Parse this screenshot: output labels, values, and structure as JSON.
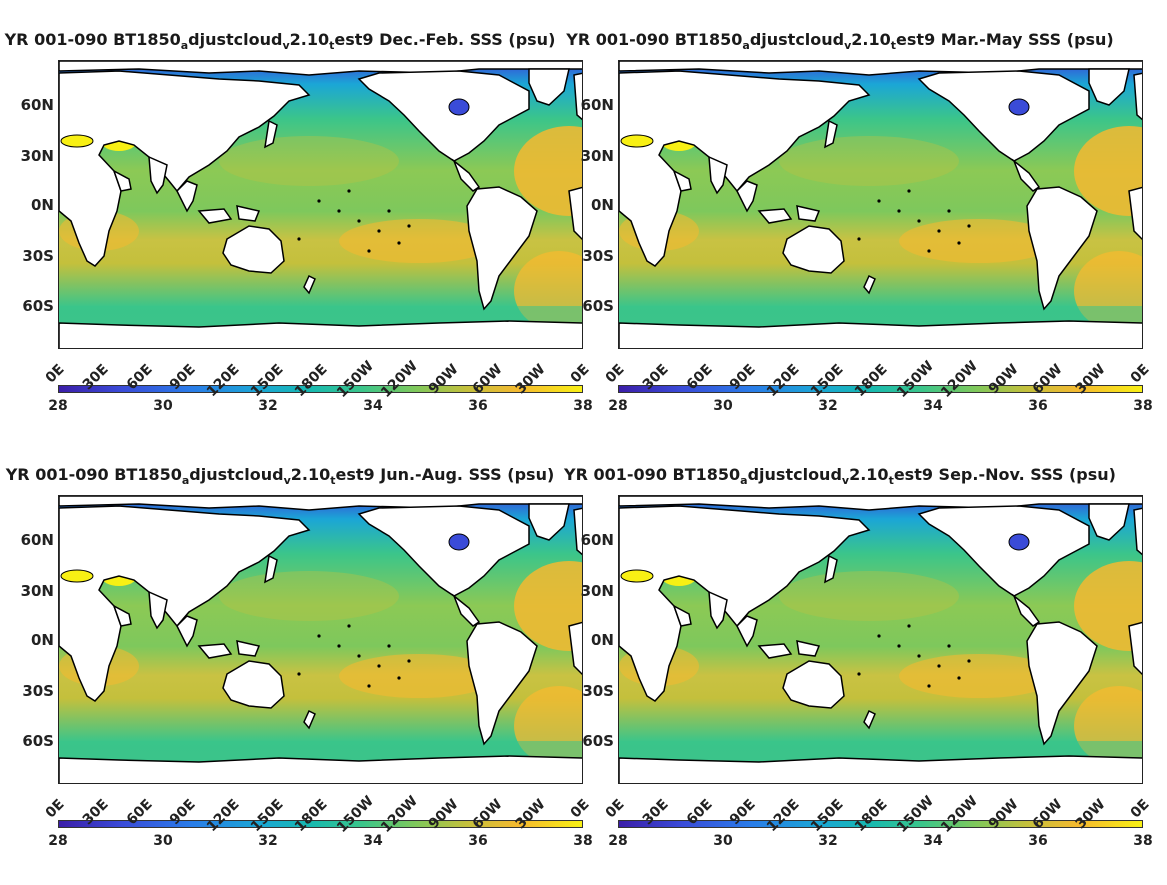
{
  "panels": [
    {
      "id": "djf",
      "title_pre": "YR 001-090 BT1850",
      "sub1": "a",
      "mid1": "djustcloud",
      "sub2": "v",
      "mid2": "2.10",
      "sub3": "t",
      "title_post": "est9 Dec.-Feb. SSS (psu)"
    },
    {
      "id": "mam",
      "title_pre": "YR 001-090 BT1850",
      "sub1": "a",
      "mid1": "djustcloud",
      "sub2": "v",
      "mid2": "2.10",
      "sub3": "t",
      "title_post": "est9 Mar.-May SSS (psu)"
    },
    {
      "id": "jja",
      "title_pre": "YR 001-090 BT1850",
      "sub1": "a",
      "mid1": "djustcloud",
      "sub2": "v",
      "mid2": "2.10",
      "sub3": "t",
      "title_post": "est9 Jun.-Aug. SSS (psu)"
    },
    {
      "id": "son",
      "title_pre": "YR 001-090 BT1850",
      "sub1": "a",
      "mid1": "djustcloud",
      "sub2": "v",
      "mid2": "2.10",
      "sub3": "t",
      "title_post": "est9 Sep.-Nov. SSS (psu)"
    }
  ],
  "lat_ticks": [
    "60N",
    "30N",
    "0N",
    "30S",
    "60S"
  ],
  "lon_ticks": [
    "0E",
    "30E",
    "60E",
    "90E",
    "120E",
    "150E",
    "180E",
    "150W",
    "120W",
    "90W",
    "60W",
    "30W",
    "0E"
  ],
  "colorbar": {
    "ticks": [
      "28",
      "30",
      "32",
      "34",
      "36",
      "38"
    ],
    "min": 28,
    "max": 38,
    "colors": [
      "#3b1ea8",
      "#2a7be8",
      "#17b9b0",
      "#7ec85c",
      "#f5b930",
      "#f8f014"
    ]
  },
  "map_colors": {
    "ocean_base": "#3bc58a",
    "fresh": "#1ba6d6",
    "salty": "#f5b930",
    "very_salty": "#f8f014",
    "arctic": "#3a4bd8",
    "land": "#ffffff",
    "coast": "#000000"
  }
}
